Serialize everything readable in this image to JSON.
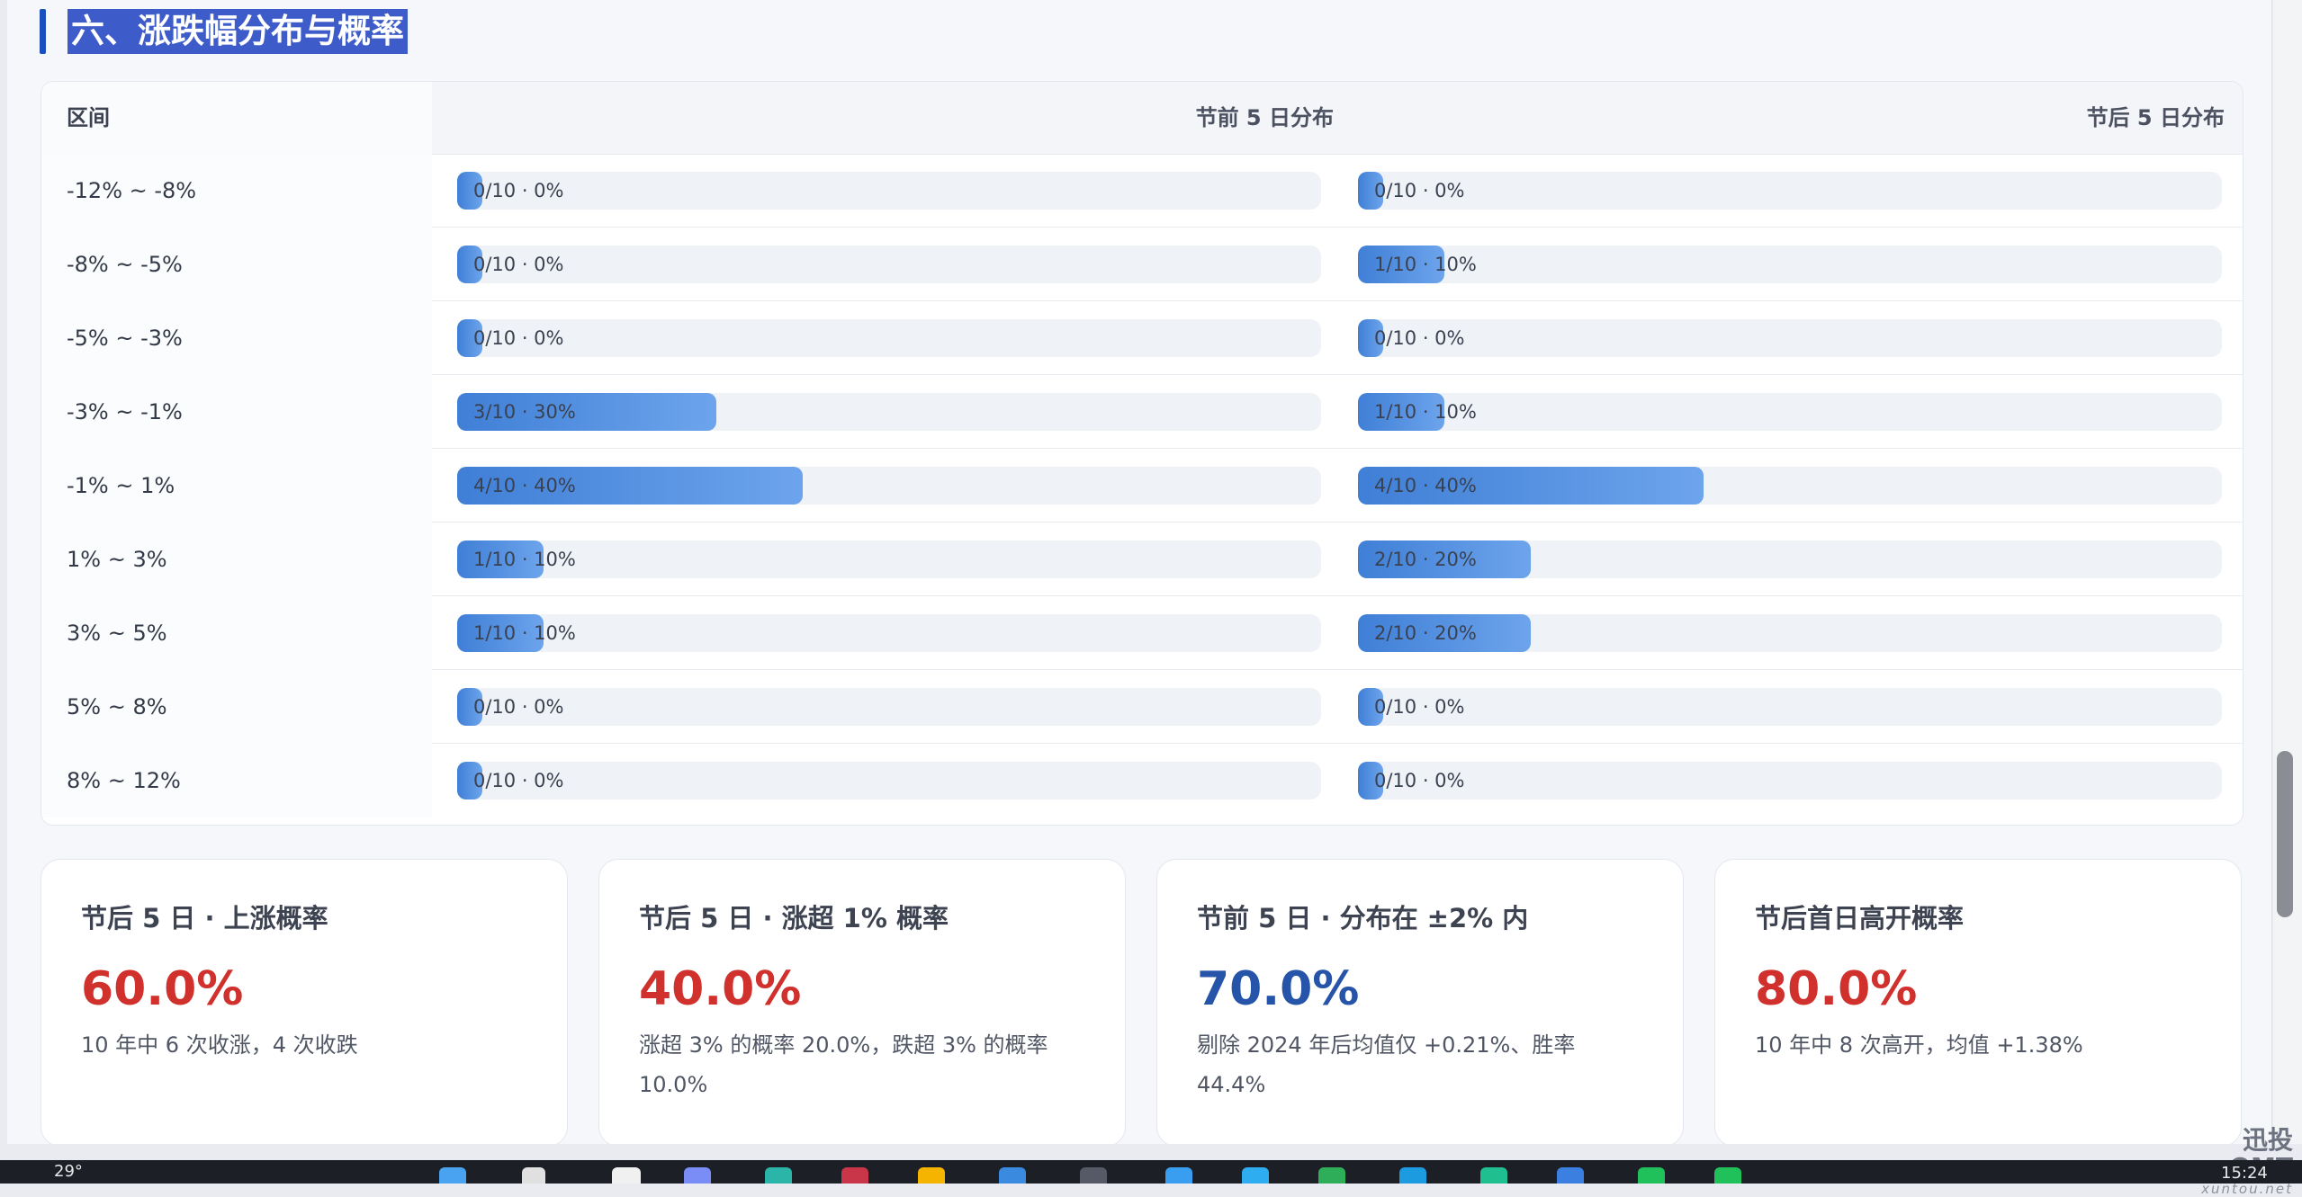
{
  "section": {
    "title": "六、涨跌幅分布与概率"
  },
  "table": {
    "headers": {
      "range": "区间",
      "pre": "节前 5 日分布",
      "post": "节后 5 日分布"
    },
    "rows": [
      {
        "range": "-12% ~ -8%",
        "pre_label": "0/10 · 0%",
        "pre_value": 0,
        "post_label": "0/10 · 0%",
        "post_value": 0
      },
      {
        "range": "-8% ~ -5%",
        "pre_label": "0/10 · 0%",
        "pre_value": 0,
        "post_label": "1/10 · 10%",
        "post_value": 10
      },
      {
        "range": "-5% ~ -3%",
        "pre_label": "0/10 · 0%",
        "pre_value": 0,
        "post_label": "0/10 · 0%",
        "post_value": 0
      },
      {
        "range": "-3% ~ -1%",
        "pre_label": "3/10 · 30%",
        "pre_value": 30,
        "post_label": "1/10 · 10%",
        "post_value": 10
      },
      {
        "range": "-1% ~ 1%",
        "pre_label": "4/10 · 40%",
        "pre_value": 40,
        "post_label": "4/10 · 40%",
        "post_value": 40
      },
      {
        "range": "1% ~ 3%",
        "pre_label": "1/10 · 10%",
        "pre_value": 10,
        "post_label": "2/10 · 20%",
        "post_value": 20
      },
      {
        "range": "3% ~ 5%",
        "pre_label": "1/10 · 10%",
        "pre_value": 10,
        "post_label": "2/10 · 20%",
        "post_value": 20
      },
      {
        "range": "5% ~ 8%",
        "pre_label": "0/10 · 0%",
        "pre_value": 0,
        "post_label": "0/10 · 0%",
        "post_value": 0
      },
      {
        "range": "8% ~ 12%",
        "pre_label": "0/10 · 0%",
        "pre_value": 0,
        "post_label": "0/10 · 0%",
        "post_value": 0
      }
    ]
  },
  "cards": [
    {
      "title": "节后 5 日 · 上涨概率",
      "value": "60.0%",
      "value_color": "red",
      "desc": "10 年中 6 次收涨，4 次收跌"
    },
    {
      "title": "节后 5 日 · 涨超 1% 概率",
      "value": "40.0%",
      "value_color": "red",
      "desc": "涨超 3% 的概率 20.0%，跌超 3% 的概率 10.0%"
    },
    {
      "title": "节前 5 日 · 分布在 ±2% 内",
      "value": "70.0%",
      "value_color": "blue",
      "desc": "剔除 2024 年后均值仅 +0.21%、胜率 44.4%"
    },
    {
      "title": "节后首日高开概率",
      "value": "80.0%",
      "value_color": "red",
      "desc": "10 年中 8 次高开，均值 +1.38%"
    }
  ],
  "watermark": {
    "main": "迅投QMT",
    "sub": "xuntou.net"
  },
  "taskbar": {
    "temperature": "29°",
    "time": "15:24"
  },
  "colors": {
    "accent": "#1b4fbf",
    "bar": "#4a89dc",
    "positive": "#d0312d",
    "neutral": "#2554a8"
  }
}
